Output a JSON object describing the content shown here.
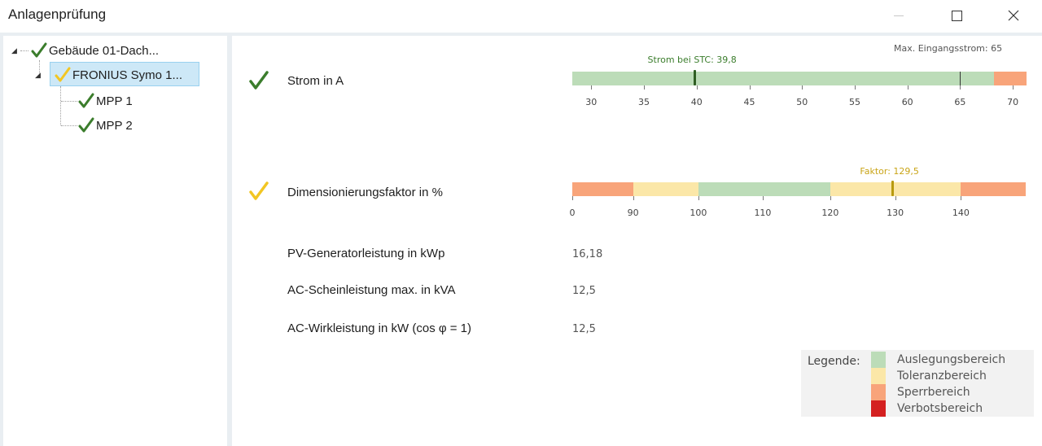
{
  "window": {
    "title": "Anlagenprüfung",
    "icons": {
      "minimize": "minimize-icon",
      "maximize": "maximize-icon",
      "close": "close-icon"
    }
  },
  "colors": {
    "ok_green": "#3b7d2c",
    "warn_yellow": "#f2c623",
    "auslegung": "#bcdcb8",
    "toleranz": "#fbe7a8",
    "sperr": "#f8a47a",
    "verbot": "#d42020",
    "selection": "#cde8f7"
  },
  "tree": {
    "root": {
      "label": "Gebäude 01-Dach...",
      "status": "ok",
      "expanded": true
    },
    "inverter": {
      "label": "FRONIUS Symo 1...",
      "status": "warn",
      "expanded": true,
      "selected": true
    },
    "mpps": [
      {
        "label": "MPP 1",
        "status": "ok"
      },
      {
        "label": "MPP 2",
        "status": "ok"
      }
    ]
  },
  "checks": [
    {
      "label": "Strom in A",
      "status": "ok",
      "scale": {
        "min": 28.2,
        "max": 71.3,
        "ticks": [
          30,
          35,
          40,
          45,
          50,
          55,
          60,
          65,
          70
        ],
        "segments": [
          {
            "from": 28.2,
            "to": 68.2,
            "zone": "auslegung"
          },
          {
            "from": 68.2,
            "to": 71.3,
            "zone": "sperr"
          }
        ],
        "marker": {
          "value": 39.8,
          "label": "Strom bei STC: 39,8"
        },
        "max_line": {
          "value": 65,
          "label": "Max. Eingangsstrom: 65"
        }
      }
    },
    {
      "label": "Dimensionierungsfaktor in %",
      "status": "warn",
      "scale": {
        "ticks": [
          {
            "label": "0",
            "pos": 0.0
          },
          {
            "label": "90",
            "pos": 0.134
          },
          {
            "label": "100",
            "pos": 0.278
          },
          {
            "label": "110",
            "pos": 0.42
          },
          {
            "label": "120",
            "pos": 0.569
          },
          {
            "label": "130",
            "pos": 0.712
          },
          {
            "label": "140",
            "pos": 0.857
          }
        ],
        "segments": [
          {
            "from": 0.0,
            "to": 0.134,
            "zone": "sperr"
          },
          {
            "from": 0.134,
            "to": 0.278,
            "zone": "toleranz"
          },
          {
            "from": 0.278,
            "to": 0.569,
            "zone": "auslegung"
          },
          {
            "from": 0.569,
            "to": 0.857,
            "zone": "toleranz"
          },
          {
            "from": 0.857,
            "to": 1.0,
            "zone": "sperr"
          }
        ],
        "marker": {
          "value": 129.5,
          "pos": 0.705,
          "label": "Faktor: 129,5"
        }
      }
    }
  ],
  "values": [
    {
      "label": "PV-Generatorleistung in kWp",
      "value": "16,18"
    },
    {
      "label": "AC-Scheinleistung max. in kVA",
      "value": "12,5"
    },
    {
      "label": "AC-Wirkleistung in kW (cos φ = 1)",
      "value": "12,5"
    }
  ],
  "legend": {
    "title": "Legende:",
    "items": [
      {
        "zone": "auslegung",
        "label": "Auslegungsbereich"
      },
      {
        "zone": "toleranz",
        "label": "Toleranzbereich"
      },
      {
        "zone": "sperr",
        "label": "Sperrbereich"
      },
      {
        "zone": "verbot",
        "label": "Verbotsbereich"
      }
    ]
  }
}
